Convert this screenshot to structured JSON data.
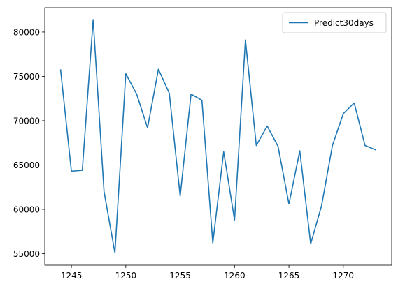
{
  "chart_data": {
    "type": "line",
    "title": "",
    "xlabel": "",
    "ylabel": "",
    "xlim": [
      1242.55,
      1274.45
    ],
    "ylim": [
      53700,
      82750
    ],
    "xticks": [
      1245,
      1250,
      1255,
      1260,
      1265,
      1270
    ],
    "yticks": [
      55000,
      60000,
      65000,
      70000,
      75000,
      80000
    ],
    "grid": false,
    "legend": {
      "placement": "top-right"
    },
    "x": [
      1244,
      1245,
      1246,
      1247,
      1248,
      1249,
      1250,
      1251,
      1252,
      1253,
      1254,
      1255,
      1256,
      1257,
      1258,
      1259,
      1260,
      1261,
      1262,
      1263,
      1264,
      1265,
      1266,
      1267,
      1268,
      1269,
      1270,
      1271,
      1272,
      1273
    ],
    "series": [
      {
        "name": "Predict30days",
        "color": "#1f77b4",
        "values": [
          75800,
          64300,
          64400,
          81400,
          62000,
          55100,
          75300,
          73000,
          69200,
          75800,
          73100,
          61500,
          73000,
          72300,
          56200,
          66500,
          58800,
          79100,
          67200,
          69400,
          67100,
          60600,
          66600,
          56100,
          60400,
          67200,
          70800,
          72000,
          67200,
          66700
        ]
      }
    ]
  }
}
